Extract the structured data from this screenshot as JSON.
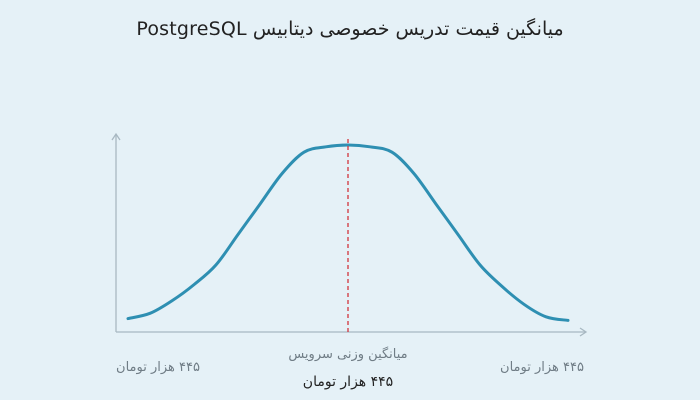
{
  "title": "میانگین قیمت تدریس خصوصی دیتابیس PostgreSQL",
  "colors": {
    "background": "#e5f1f7",
    "curve": "#2e8fb2",
    "axis": "#a8b8c2",
    "average_marker": "#d2343c",
    "muted_text": "#707d86",
    "dark_text": "#222222"
  },
  "chart_data": {
    "type": "line",
    "title": "میانگین قیمت تدریس خصوصی دیتابیس PostgreSQL",
    "xlabel": "",
    "ylabel": "",
    "grid": false,
    "shape": "bell",
    "x_range_labels": {
      "left": "۴۴۵ هزار تومان",
      "right": "۴۴۵ هزار تومان"
    },
    "average": {
      "label": "میانگین وزنی سرویس",
      "value_label": "۴۴۵ هزار تومان",
      "x": 0.5
    },
    "series": [
      {
        "x": [
          0,
          0.05,
          0.1,
          0.15,
          0.2,
          0.25,
          0.3,
          0.35,
          0.4,
          0.45,
          0.5,
          0.55,
          0.6,
          0.65,
          0.7,
          0.75,
          0.8,
          0.85,
          0.9,
          0.95,
          1
        ],
        "y": [
          0.03,
          0.06,
          0.13,
          0.22,
          0.33,
          0.5,
          0.67,
          0.84,
          0.96,
          0.99,
          1,
          0.99,
          0.96,
          0.84,
          0.67,
          0.5,
          0.33,
          0.21,
          0.11,
          0.04,
          0.02
        ]
      }
    ]
  }
}
